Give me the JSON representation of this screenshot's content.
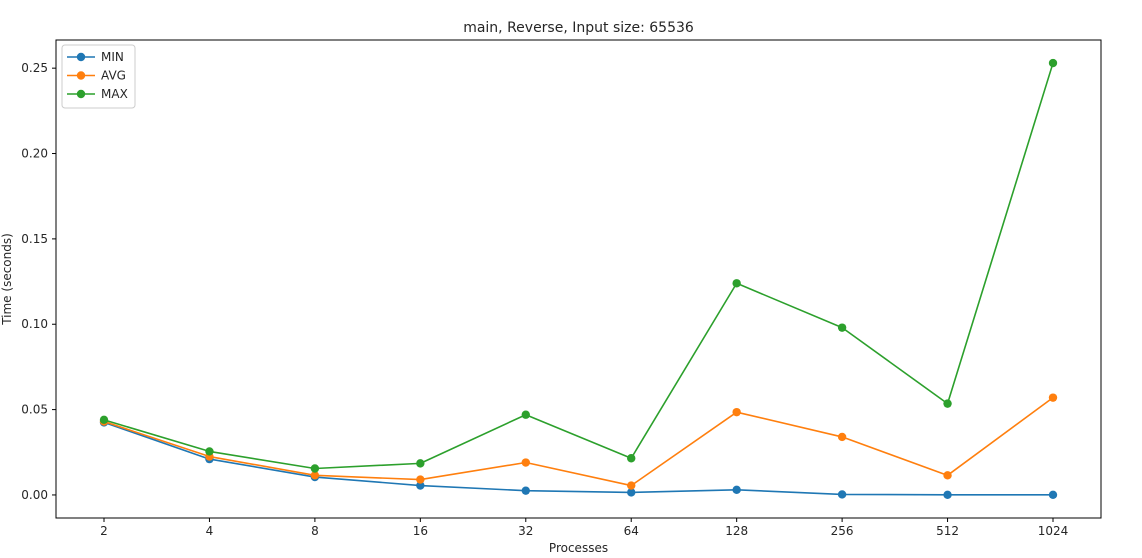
{
  "chart_data": {
    "type": "line",
    "title": "main, Reverse, Input size: 65536",
    "xlabel": "Processes",
    "ylabel": "Time (seconds)",
    "categories": [
      "2",
      "4",
      "8",
      "16",
      "32",
      "64",
      "128",
      "256",
      "512",
      "1024"
    ],
    "ylim": [
      -0.0135,
      0.2665
    ],
    "yticks": [
      "0.00",
      "0.05",
      "0.10",
      "0.15",
      "0.20",
      "0.25"
    ],
    "grid": false,
    "legend": "top-left",
    "series": [
      {
        "name": "MIN",
        "color": "#1f77b4",
        "values": [
          0.0425,
          0.021,
          0.0105,
          0.0055,
          0.0025,
          0.0015,
          0.003,
          0.0003,
          0.0001,
          0.0001
        ]
      },
      {
        "name": "AVG",
        "color": "#ff7f0e",
        "values": [
          0.043,
          0.0225,
          0.0115,
          0.009,
          0.019,
          0.0055,
          0.0485,
          0.034,
          0.0115,
          0.057
        ]
      },
      {
        "name": "MAX",
        "color": "#2ca02c",
        "values": [
          0.044,
          0.0255,
          0.0155,
          0.0185,
          0.047,
          0.0215,
          0.124,
          0.098,
          0.0535,
          0.253
        ]
      }
    ]
  }
}
